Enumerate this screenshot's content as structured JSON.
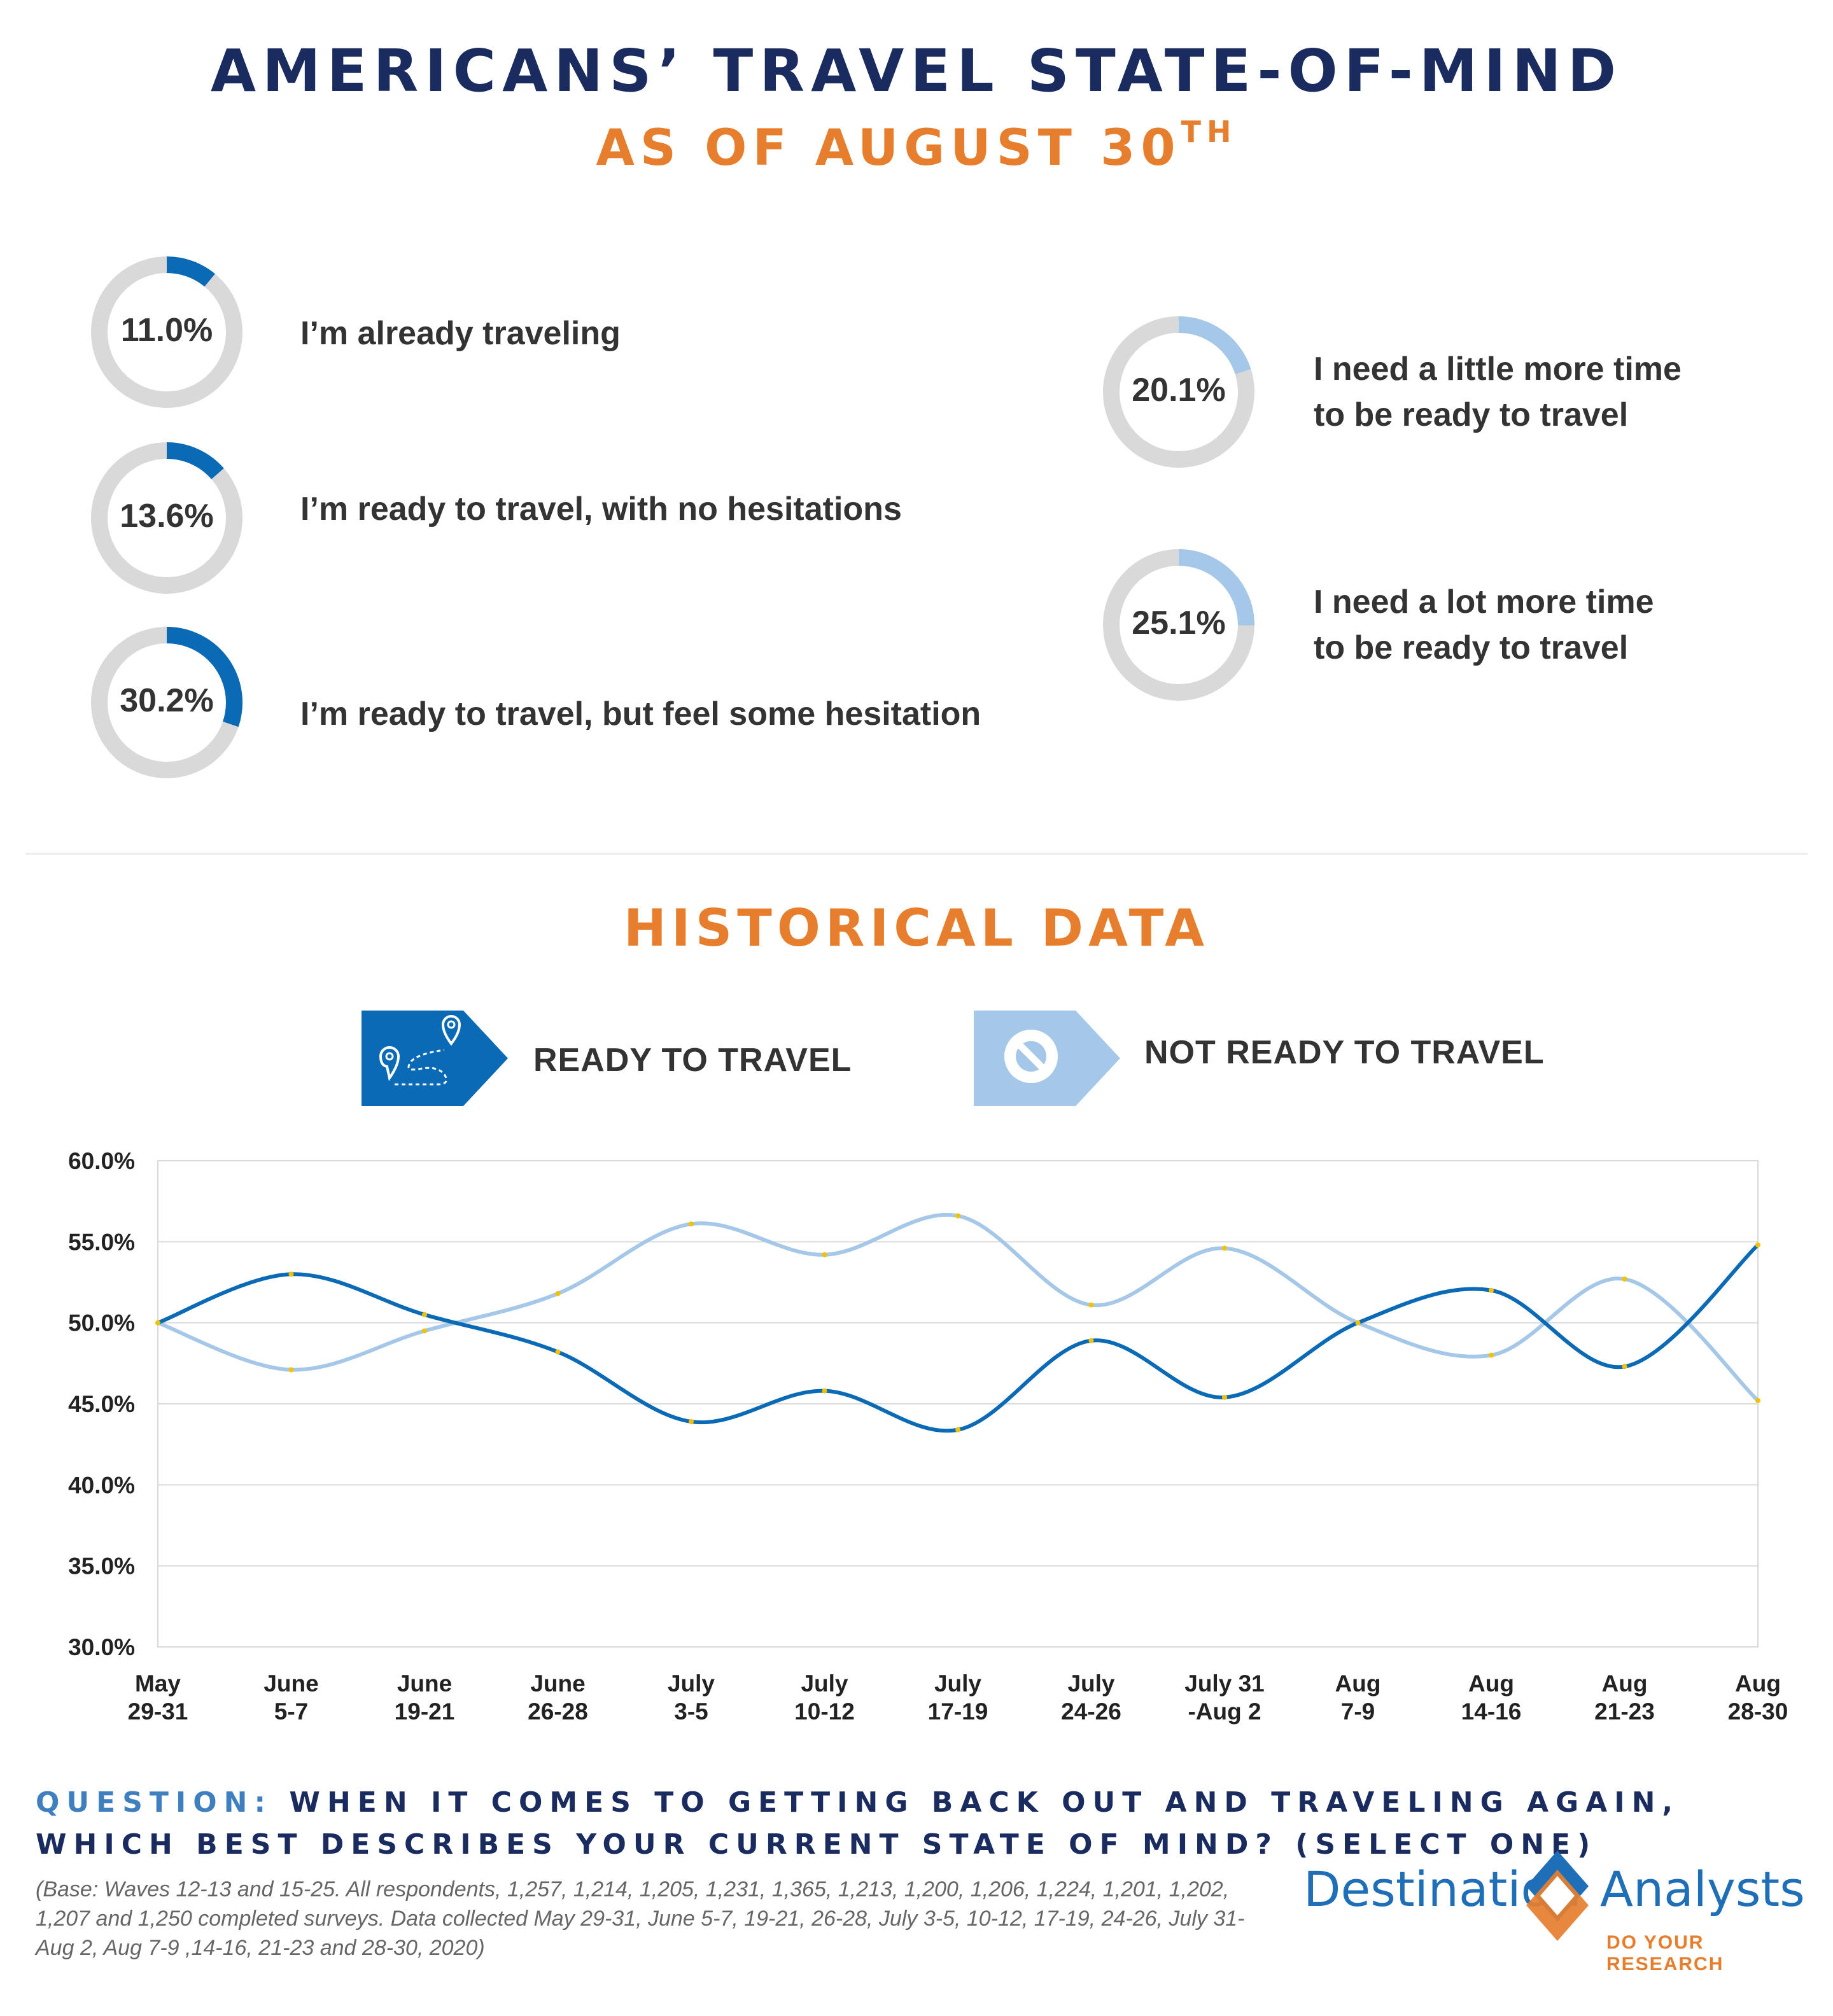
{
  "header": {
    "title": "AMERICANS’ TRAVEL STATE-OF-MIND",
    "subtitle": "AS OF AUGUST 30",
    "subtitle_sup": "TH"
  },
  "colors": {
    "dark_blue": "#0a6ab5",
    "light_blue": "#a6c8e8",
    "ring_gray": "#d9d9d9",
    "orange": "#e67e2e",
    "navy": "#1a2b5f"
  },
  "donuts": [
    {
      "value": "11.0%",
      "fraction": 0.11,
      "label_lines": [
        "I’m already traveling"
      ],
      "color": "#0a6ab5"
    },
    {
      "value": "13.6%",
      "fraction": 0.136,
      "label_lines": [
        "I’m ready to travel, with no hesitations"
      ],
      "color": "#0a6ab5"
    },
    {
      "value": "30.2%",
      "fraction": 0.302,
      "label_lines": [
        "I’m ready to travel, but feel some hesitation"
      ],
      "color": "#0a6ab5"
    },
    {
      "value": "20.1%",
      "fraction": 0.201,
      "label_lines": [
        "I need a little more time",
        "to be ready to travel"
      ],
      "color": "#a6c8e8"
    },
    {
      "value": "25.1%",
      "fraction": 0.251,
      "label_lines": [
        "I need a lot more time",
        "to be ready to travel"
      ],
      "color": "#a6c8e8"
    }
  ],
  "historical": {
    "title": "HISTORICAL DATA",
    "legend": [
      {
        "label": "READY TO TRAVEL",
        "icon": "map-route-icon",
        "color": "#0a6ab5"
      },
      {
        "label": "NOT READY TO TRAVEL",
        "icon": "prohibited-icon",
        "color": "#a6c8e8"
      }
    ]
  },
  "chart_data": {
    "type": "line",
    "categories": [
      [
        "May",
        "29-31"
      ],
      [
        "June",
        "5-7"
      ],
      [
        "June",
        "19-21"
      ],
      [
        "June",
        "26-28"
      ],
      [
        "July",
        "3-5"
      ],
      [
        "July",
        "10-12"
      ],
      [
        "July",
        "17-19"
      ],
      [
        "July",
        "24-26"
      ],
      [
        "July 31",
        "-Aug 2"
      ],
      [
        "Aug",
        "7-9"
      ],
      [
        "Aug",
        "14-16"
      ],
      [
        "Aug",
        "21-23"
      ],
      [
        "Aug",
        "28-30"
      ]
    ],
    "series": [
      {
        "name": "READY TO TRAVEL",
        "color": "#0a6ab5",
        "values": [
          50.0,
          53.0,
          50.5,
          48.2,
          43.9,
          45.8,
          43.4,
          48.9,
          45.4,
          50.0,
          52.0,
          47.3,
          54.8
        ]
      },
      {
        "name": "NOT READY TO TRAVEL",
        "color": "#a6c8e8",
        "values": [
          50.0,
          47.1,
          49.5,
          51.8,
          56.1,
          54.2,
          56.6,
          51.1,
          54.6,
          50.0,
          48.0,
          52.7,
          45.2
        ]
      }
    ],
    "y_ticks": [
      "60.0%",
      "55.0%",
      "50.0%",
      "45.0%",
      "40.0%",
      "35.0%",
      "30.0%"
    ],
    "ylim": [
      30,
      60
    ],
    "grid": true
  },
  "question": {
    "prefix": "QUESTION:",
    "text": " WHEN IT COMES TO GETTING BACK OUT AND TRAVELING AGAIN, WHICH BEST DESCRIBES YOUR CURRENT STATE OF MIND? (SELECT ONE)"
  },
  "base_note": "(Base: Waves 12-13 and 15-25. All respondents, 1,257, 1,214, 1,205, 1,231, 1,365, 1,213, 1,200, 1,206, 1,224, 1,201, 1,202, 1,207 and 1,250 completed surveys. Data collected May 29-31, June 5-7, 19-21, 26-28, July 3-5, 10-12, 17-19, 24-26, July 31-Aug 2, Aug 7-9 ,14-16,  21-23 and 28-30, 2020)",
  "logo": {
    "left": "Destination",
    "right": "Analysts",
    "tagline": "DO YOUR RESEARCH"
  }
}
